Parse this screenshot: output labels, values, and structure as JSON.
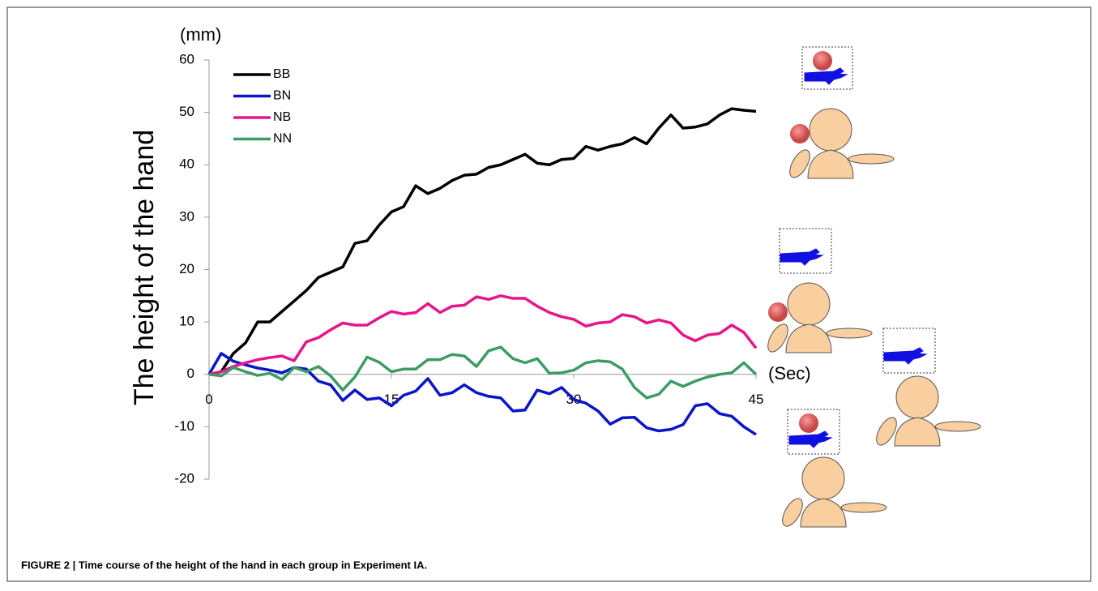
{
  "chart_data": {
    "type": "line",
    "ylabel": "The height of the hand",
    "y_unit": "(mm)",
    "x_unit": "(Sec)",
    "caption": "FIGURE 2 | Time course of the height of the hand in each group in Experiment IA.",
    "x": [
      0,
      1,
      2,
      3,
      4,
      5,
      6,
      7,
      8,
      9,
      10,
      11,
      12,
      13,
      14,
      15,
      16,
      17,
      18,
      19,
      20,
      21,
      22,
      23,
      24,
      25,
      26,
      27,
      28,
      29,
      30,
      31,
      32,
      33,
      34,
      35,
      36,
      37,
      38,
      39,
      40,
      41,
      42,
      43,
      44,
      45
    ],
    "series": [
      {
        "name": "BB",
        "color": "#000000",
        "values": [
          0,
          0.5,
          4,
          6,
          10,
          10,
          12,
          14,
          16,
          18.5,
          19.5,
          20.5,
          25,
          25.5,
          28.5,
          31,
          32,
          36,
          34.5,
          35.5,
          37,
          38,
          38.2,
          39.5,
          40,
          41,
          42,
          40.3,
          40,
          41,
          41.2,
          43.5,
          42.8,
          43.5,
          44,
          45.2,
          44,
          47,
          49.5,
          47,
          47.2,
          47.8,
          49.5,
          50.7,
          50.4,
          50.2
        ]
      },
      {
        "name": "BN",
        "color": "#0a14c8",
        "values": [
          0,
          4,
          2.5,
          1.8,
          1.2,
          0.8,
          0.3,
          1.3,
          1,
          -1.3,
          -2,
          -5,
          -3,
          -4.8,
          -4.5,
          -6,
          -4,
          -3.2,
          -0.8,
          -4,
          -3.5,
          -2,
          -3.5,
          -4.2,
          -4.5,
          -7,
          -6.8,
          -3,
          -3.7,
          -2.5,
          -4.8,
          -5.5,
          -7,
          -9.5,
          -8.3,
          -8.2,
          -10.2,
          -10.8,
          -10.5,
          -9.6,
          -6,
          -5.6,
          -7.5,
          -8,
          -10,
          -11.5
        ]
      },
      {
        "name": "NB",
        "color": "#e8148c",
        "values": [
          0,
          0.5,
          1.5,
          2.2,
          2.8,
          3.2,
          3.5,
          2.6,
          6.2,
          7,
          8.5,
          9.8,
          9.4,
          9.4,
          10.8,
          12,
          11.5,
          11.8,
          13.5,
          11.8,
          13,
          13.2,
          14.8,
          14.3,
          15,
          14.5,
          14.5,
          13,
          11.8,
          11,
          10.5,
          9.2,
          9.8,
          10,
          11.4,
          11,
          9.8,
          10.4,
          9.8,
          7.5,
          6.4,
          7.5,
          7.8,
          9.4,
          8,
          5
        ]
      },
      {
        "name": "NN",
        "color": "#3c9c64",
        "values": [
          0,
          -0.3,
          1.3,
          0.5,
          -0.2,
          0.2,
          -1,
          1.3,
          0.5,
          1.5,
          -0.3,
          -3,
          -0.5,
          3.3,
          2.3,
          0.5,
          1,
          1,
          2.8,
          2.8,
          3.8,
          3.5,
          1.5,
          4.5,
          5.2,
          3,
          2.2,
          3,
          0.2,
          0.3,
          0.8,
          2.2,
          2.6,
          2.4,
          1,
          -2.5,
          -4.5,
          -3.8,
          -1.3,
          -2.3,
          -1.3,
          -0.5,
          0,
          0.3,
          2.2,
          0
        ]
      }
    ],
    "xlim": [
      0,
      45
    ],
    "xticks": [
      0,
      15,
      30,
      45
    ],
    "ylim": [
      -20,
      60
    ],
    "yticks": [
      -20,
      -10,
      0,
      10,
      20,
      30,
      40,
      50,
      60
    ],
    "legend": "top-left"
  }
}
